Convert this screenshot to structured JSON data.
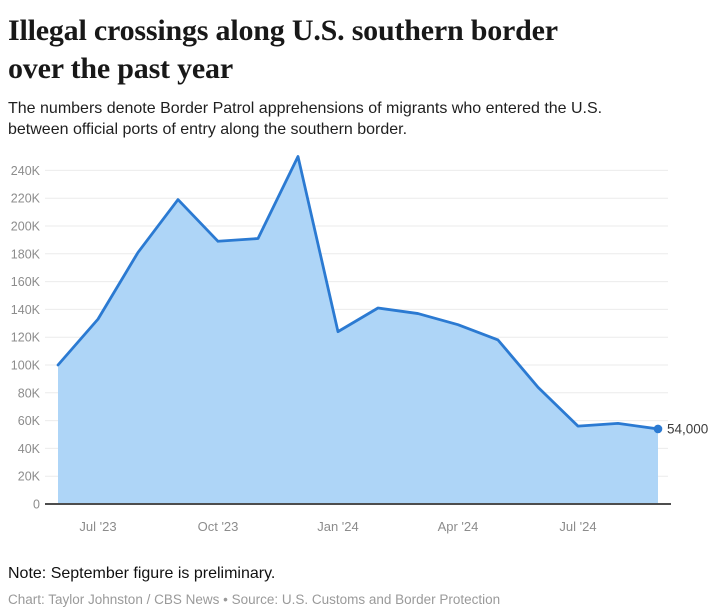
{
  "header": {
    "title_line1": "Illegal crossings along U.S. southern border",
    "title_line2": "over the past year",
    "subtitle_line1": "The numbers denote Border Patrol apprehensions of migrants who entered the U.S.",
    "subtitle_line2": "between official ports of entry along the southern border."
  },
  "footer": {
    "note": "Note: September figure is preliminary.",
    "credit": "Chart: Taylor Johnston / CBS News • Source: U.S. Customs and Border Protection"
  },
  "chart_data": {
    "type": "area",
    "title": "Illegal crossings along U.S. southern border over the past year",
    "xlabel": "",
    "ylabel": "",
    "grid": true,
    "legend": false,
    "ylim": [
      0,
      260000
    ],
    "categories": [
      "Jun '23",
      "Jul '23",
      "Aug '23",
      "Sep '23",
      "Oct '23",
      "Nov '23",
      "Dec '23",
      "Jan '24",
      "Feb '24",
      "Mar '24",
      "Apr '24",
      "May '24",
      "Jun '24",
      "Jul '24",
      "Aug '24",
      "Sep '24"
    ],
    "values": [
      100000,
      133000,
      181000,
      219000,
      189000,
      191000,
      250000,
      124000,
      141000,
      137000,
      129000,
      118000,
      84000,
      56000,
      58000,
      54000
    ],
    "x_tick_indices": [
      1,
      4,
      7,
      10,
      13
    ],
    "x_tick_labels": [
      "Jul '23",
      "Oct '23",
      "Jan '24",
      "Apr '24",
      "Jul '24"
    ],
    "y_tick_values": [
      0,
      20000,
      40000,
      60000,
      80000,
      100000,
      120000,
      140000,
      160000,
      180000,
      200000,
      220000,
      240000
    ],
    "y_tick_labels": [
      "0",
      "20K",
      "40K",
      "60K",
      "80K",
      "100K",
      "120K",
      "140K",
      "160K",
      "180K",
      "200K",
      "220K",
      "240K"
    ],
    "end_label": "54,000",
    "colors": {
      "line": "#2b7ad2",
      "fill": "#aed5f7",
      "marker": "#2b7ad2",
      "grid": "#ebebeb",
      "axis": "#4d4d4d",
      "tick_text": "#8c8c8c",
      "end_label_text": "#3d3d3d"
    }
  }
}
